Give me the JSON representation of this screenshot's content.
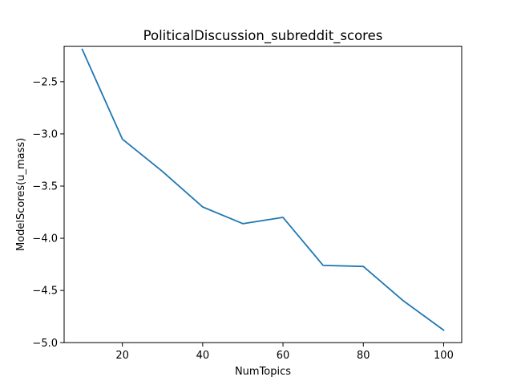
{
  "chart_data": {
    "type": "line",
    "title": "PoliticalDiscussion_subreddit_scores",
    "xlabel": "NumTopics",
    "ylabel": "ModelScores(u_mass)",
    "x": [
      10,
      20,
      30,
      40,
      50,
      60,
      70,
      80,
      90,
      100
    ],
    "series": [
      {
        "values": [
          -2.19,
          -3.05,
          -3.36,
          -3.7,
          -3.86,
          -3.8,
          -4.26,
          -4.27,
          -4.6,
          -4.88
        ],
        "color": "#1f77b4"
      }
    ],
    "xlim": [
      5.5,
      104.5
    ],
    "ylim": [
      -5.0,
      -2.16
    ],
    "xticks": [
      20,
      40,
      60,
      80,
      100
    ],
    "xtick_labels": [
      "20",
      "40",
      "60",
      "80",
      "100"
    ],
    "yticks": [
      -2.5,
      -3.0,
      -3.5,
      -4.0,
      -4.5,
      -5.0
    ],
    "ytick_labels": [
      "−2.5",
      "−3.0",
      "−3.5",
      "−4.0",
      "−4.5",
      "−5.0"
    ],
    "grid": false,
    "legend": "none"
  }
}
